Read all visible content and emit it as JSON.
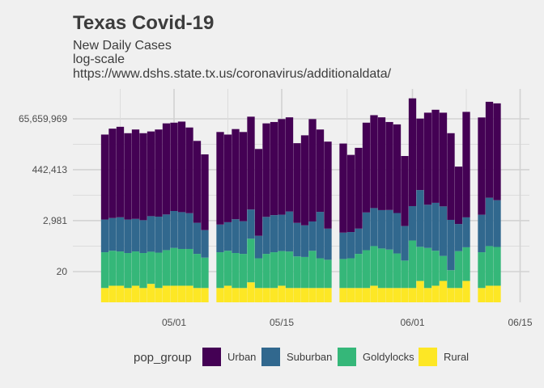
{
  "chart_data": {
    "type": "bar",
    "stacked": true,
    "title": "Texas Covid-19",
    "subtitle_lines": [
      "New Daily Cases",
      "log-scale",
      "https://www.dshs.state.tx.us/coronavirus/additionaldata/"
    ],
    "xlabel": "",
    "ylabel": "",
    "y_scale": "log",
    "x_tick_labels": [
      {
        "date": "2020-05-01",
        "label": "05/01"
      },
      {
        "date": "2020-05-15",
        "label": "05/15"
      },
      {
        "date": "2020-06-01",
        "label": "06/01"
      },
      {
        "date": "2020-06-15",
        "label": "06/15"
      }
    ],
    "y_tick_labels": [
      {
        "value": 20,
        "label": "20"
      },
      {
        "value": 2981,
        "label": "2,981"
      },
      {
        "value": 442413,
        "label": "442,413"
      },
      {
        "value": 65659969,
        "label": "65,659,969"
      }
    ],
    "grid": true,
    "legend": {
      "title": "pop_group",
      "position": "bottom",
      "entries": [
        {
          "name": "Urban",
          "color": "#440154"
        },
        {
          "name": "Suburban",
          "color": "#31688e"
        },
        {
          "name": "Goldylocks",
          "color": "#35b779"
        },
        {
          "name": "Rural",
          "color": "#fde725"
        }
      ]
    },
    "series_order_bottom_to_top": [
      "Rural",
      "Goldylocks",
      "Suburban",
      "Urban"
    ],
    "dates": [
      "2020-04-22",
      "2020-04-23",
      "2020-04-24",
      "2020-04-25",
      "2020-04-26",
      "2020-04-27",
      "2020-04-28",
      "2020-04-29",
      "2020-04-30",
      "2020-05-01",
      "2020-05-02",
      "2020-05-03",
      "2020-05-04",
      "2020-05-05",
      "2020-05-07",
      "2020-05-08",
      "2020-05-09",
      "2020-05-10",
      "2020-05-11",
      "2020-05-12",
      "2020-05-13",
      "2020-05-14",
      "2020-05-15",
      "2020-05-16",
      "2020-05-17",
      "2020-05-18",
      "2020-05-19",
      "2020-05-20",
      "2020-05-21",
      "2020-05-23",
      "2020-05-24",
      "2020-05-25",
      "2020-05-26",
      "2020-05-27",
      "2020-05-28",
      "2020-05-29",
      "2020-05-30",
      "2020-05-31",
      "2020-06-01",
      "2020-06-02",
      "2020-06-03",
      "2020-06-04",
      "2020-06-05",
      "2020-06-06",
      "2020-06-07",
      "2020-06-08",
      "2020-06-10",
      "2020-06-11",
      "2020-06-12"
    ],
    "series": [
      {
        "name": "Rural",
        "values": [
          4,
          5,
          5,
          4,
          5,
          4,
          6,
          4,
          5,
          5,
          5,
          5,
          4,
          4,
          4,
          5,
          4,
          4,
          7,
          4,
          4,
          4,
          5,
          4,
          4,
          4,
          4,
          4,
          4,
          4,
          4,
          4,
          4,
          5,
          4,
          4,
          4,
          4,
          4,
          8,
          4,
          5,
          8,
          4,
          4,
          8,
          4,
          5,
          5
        ]
      },
      {
        "name": "Goldylocks",
        "values": [
          130,
          150,
          140,
          120,
          140,
          120,
          135,
          125,
          160,
          200,
          180,
          180,
          110,
          75,
          130,
          150,
          120,
          110,
          500,
          70,
          110,
          130,
          145,
          140,
          85,
          80,
          150,
          70,
          60,
          65,
          70,
          110,
          160,
          240,
          190,
          170,
          115,
          55,
          420,
          220,
          200,
          150,
          85,
          19,
          145,
          210,
          130,
          240,
          220
        ]
      },
      {
        "name": "Suburban",
        "values": [
          3200,
          3700,
          4000,
          3200,
          3400,
          3000,
          4500,
          4300,
          5300,
          7500,
          6700,
          6000,
          2300,
          1100,
          1900,
          2400,
          3300,
          2700,
          8400,
          600,
          4200,
          5000,
          5200,
          7200,
          2300,
          1800,
          2600,
          7000,
          1300,
          850,
          900,
          1250,
          6500,
          10000,
          8200,
          8300,
          6200,
          1700,
          12000,
          60000,
          14000,
          17000,
          12000,
          3200,
          2000,
          3900,
          5200,
          28000,
          22000
        ]
      },
      {
        "name": "Urban",
        "values": [
          14000000,
          25000000,
          30000000,
          16000000,
          23000000,
          16000000,
          19000000,
          23000000,
          42000000,
          45000000,
          50000000,
          28000000,
          7500000,
          2000000,
          18000000,
          14000000,
          24000000,
          18000000,
          81000000,
          3400000,
          42000000,
          48000000,
          64000000,
          76000000,
          6000000,
          13000000,
          64000000,
          23000000,
          7000000,
          5800000,
          1900000,
          3800000,
          45000000,
          94000000,
          76000000,
          48000000,
          38000000,
          1700000,
          490000000,
          67000000,
          120000000,
          160000000,
          120000000,
          16000000,
          600000,
          130000000,
          75000000,
          350000000,
          300000000
        ]
      }
    ]
  }
}
